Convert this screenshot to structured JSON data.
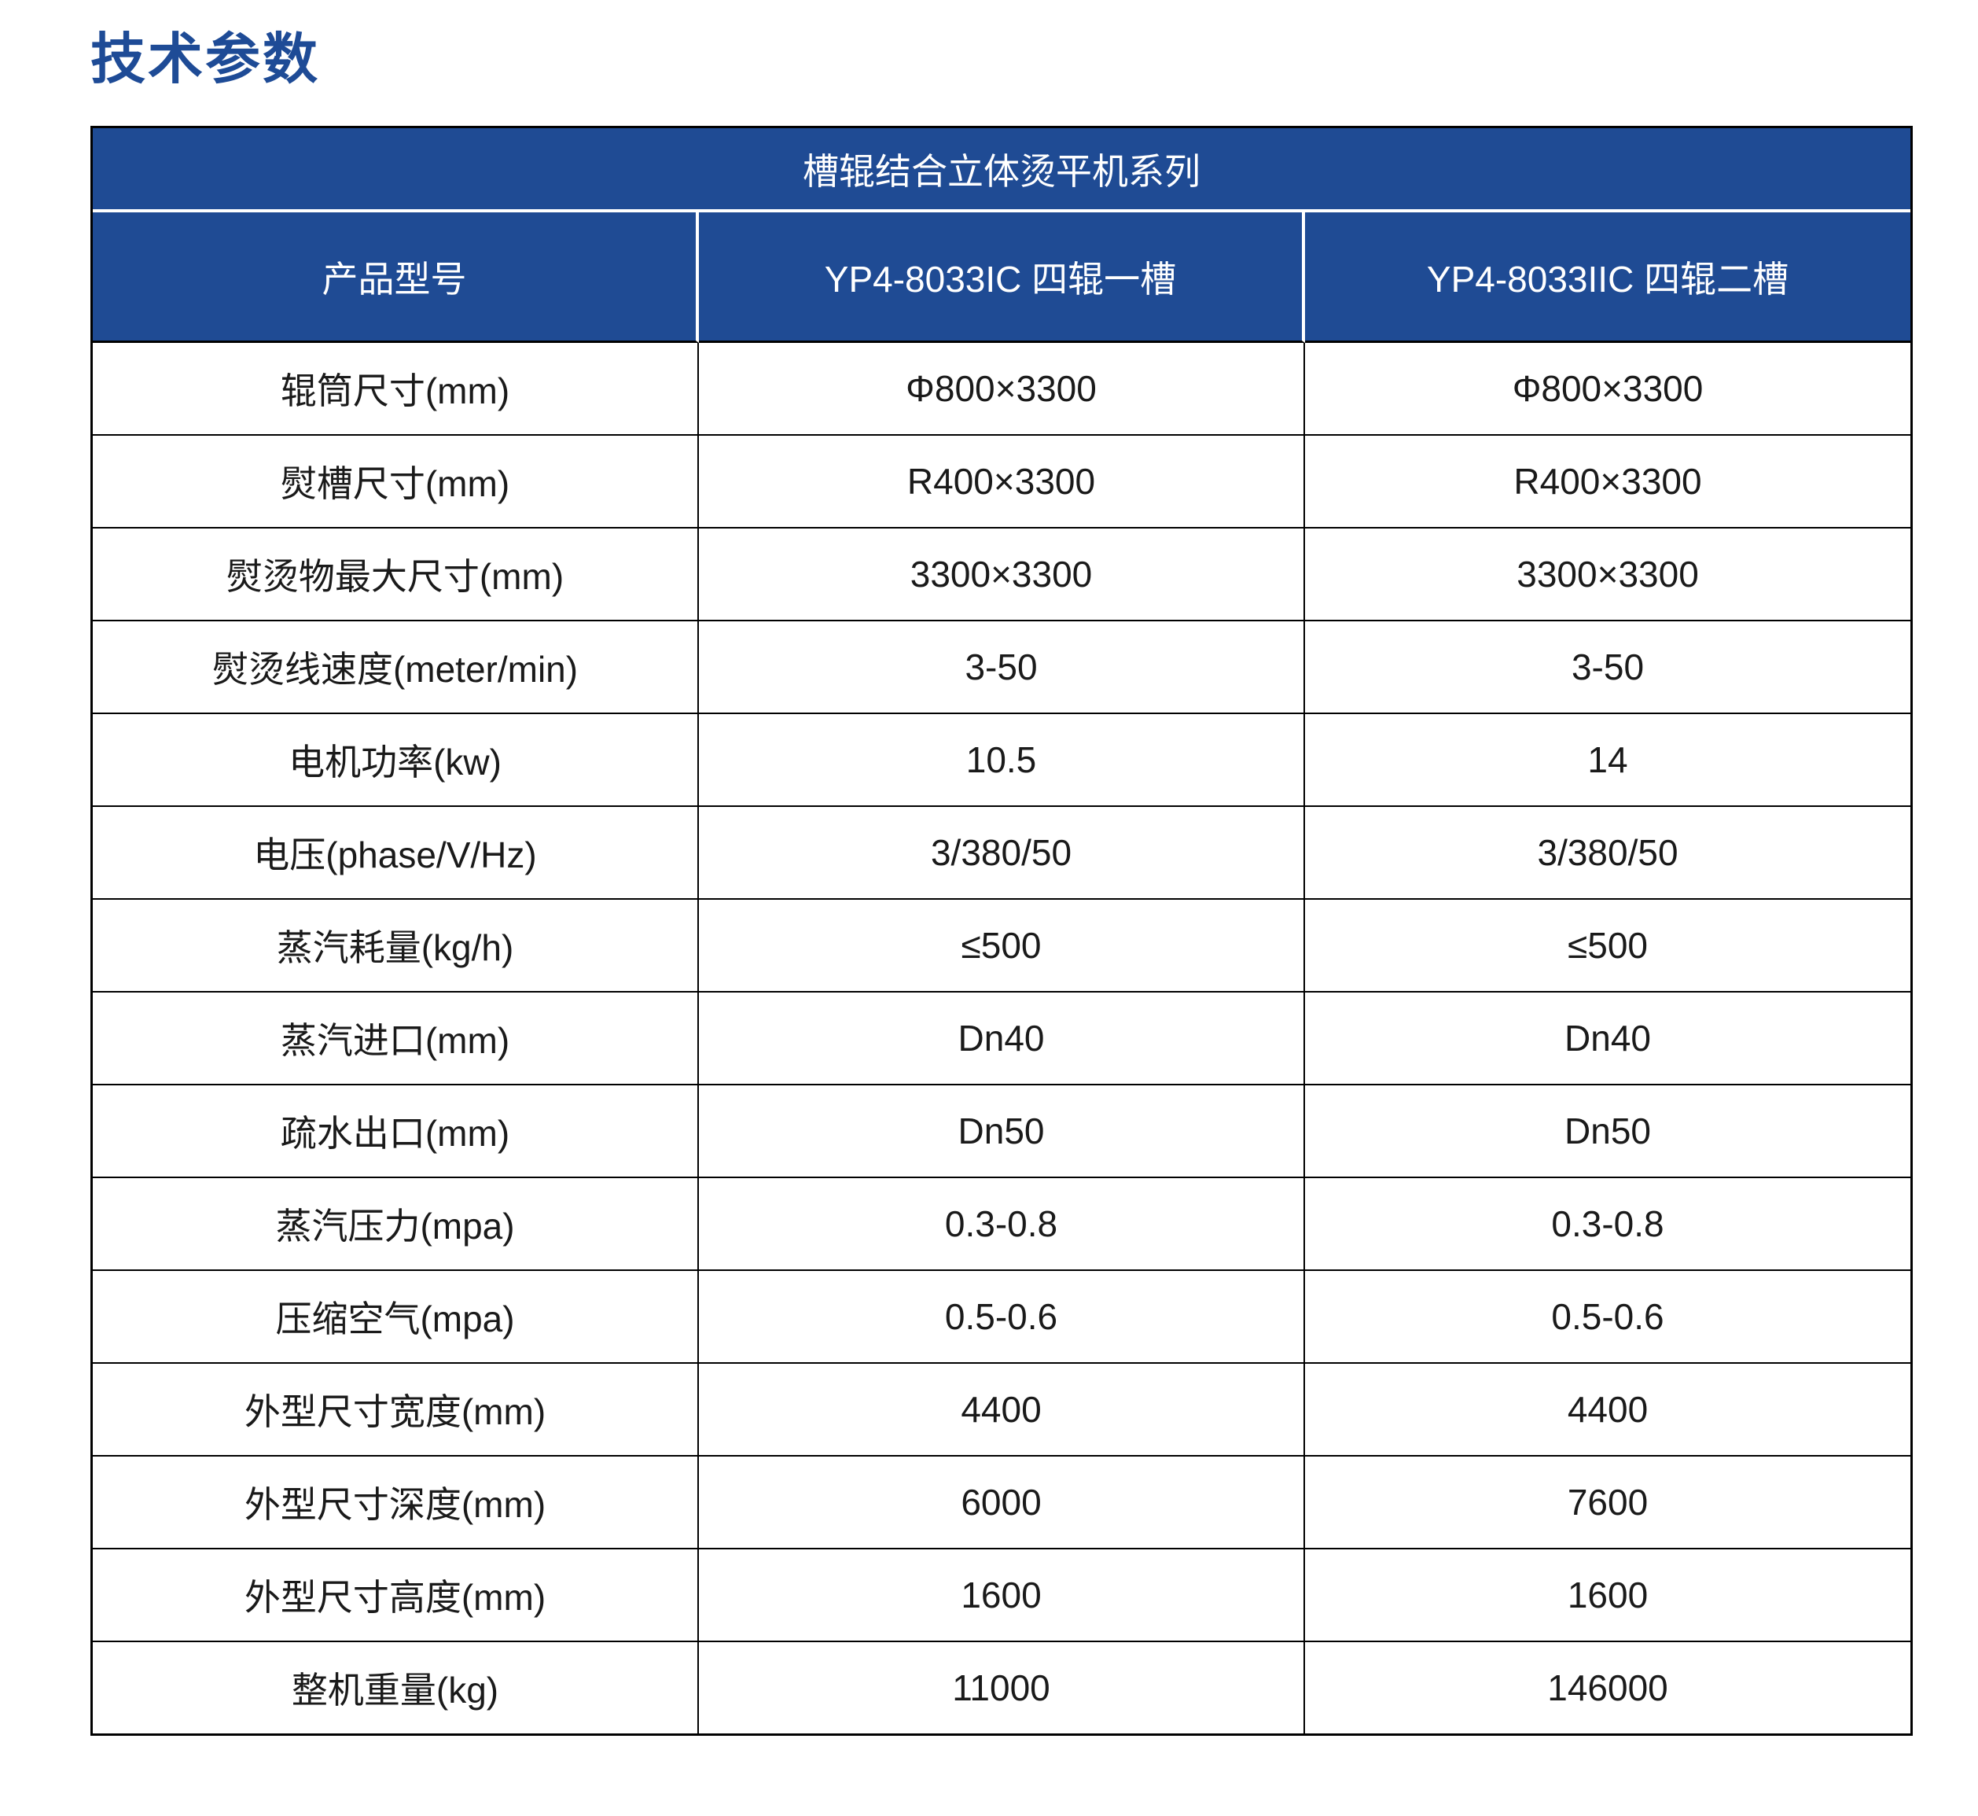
{
  "page": {
    "title": "技术参数"
  },
  "colors": {
    "title": "#1E4B96",
    "header_bg": "#1F4B94",
    "header_text": "#FFFFFF",
    "body_text": "#1A1A1A",
    "border": "#000000"
  },
  "table": {
    "series_title": "槽辊结合立体烫平机系列",
    "columns": [
      "产品型号",
      "YP4-8033IC 四辊一槽",
      "YP4-8033IIC 四辊二槽"
    ],
    "rows": [
      {
        "label": "辊筒尺寸(mm)",
        "values": [
          "Φ800×3300",
          "Φ800×3300"
        ]
      },
      {
        "label": "熨槽尺寸(mm)",
        "values": [
          "R400×3300",
          "R400×3300"
        ]
      },
      {
        "label": "熨烫物最大尺寸(mm)",
        "values": [
          "3300×3300",
          "3300×3300"
        ]
      },
      {
        "label": "熨烫线速度(meter/min)",
        "values": [
          "3-50",
          "3-50"
        ]
      },
      {
        "label": "电机功率(kw)",
        "values": [
          "10.5",
          "14"
        ]
      },
      {
        "label": "电压(phase/V/Hz)",
        "values": [
          "3/380/50",
          "3/380/50"
        ]
      },
      {
        "label": "蒸汽耗量(kg/h)",
        "values": [
          "≤500",
          "≤500"
        ]
      },
      {
        "label": "蒸汽进口(mm)",
        "values": [
          "Dn40",
          "Dn40"
        ]
      },
      {
        "label": "疏水出口(mm)",
        "values": [
          "Dn50",
          "Dn50"
        ]
      },
      {
        "label": "蒸汽压力(mpa)",
        "values": [
          "0.3-0.8",
          "0.3-0.8"
        ]
      },
      {
        "label": "压缩空气(mpa)",
        "values": [
          "0.5-0.6",
          "0.5-0.6"
        ]
      },
      {
        "label": "外型尺寸宽度(mm)",
        "values": [
          "4400",
          "4400"
        ]
      },
      {
        "label": "外型尺寸深度(mm)",
        "values": [
          "6000",
          "7600"
        ]
      },
      {
        "label": "外型尺寸高度(mm)",
        "values": [
          "1600",
          "1600"
        ]
      },
      {
        "label": "整机重量(kg)",
        "values": [
          "11000",
          "146000"
        ]
      }
    ]
  }
}
